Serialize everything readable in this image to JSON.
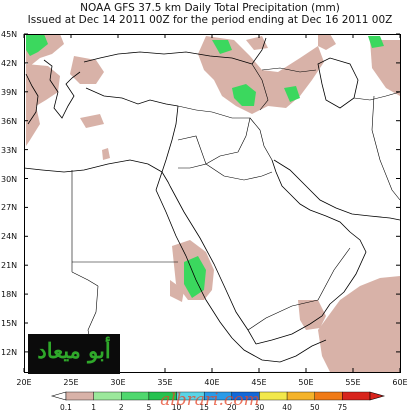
{
  "title_line1": "NOAA GFS 37.5 km Daily Total Precipitation (mm)",
  "title_line2": "Issued at Dec 14 2011 00Z for the period ending at Dec 16 2011 00Z",
  "lat_labels": [
    "45N",
    "42N",
    "39N",
    "36N",
    "33N",
    "30N",
    "27N",
    "24N",
    "21N",
    "18N",
    "15N",
    "12N"
  ],
  "lon_labels": [
    "20E",
    "25E",
    "30E",
    "35E",
    "40E",
    "45E",
    "50E",
    "55E",
    "60E"
  ],
  "colorbar": {
    "labels": [
      "0.1",
      "1",
      "2",
      "5",
      "10",
      "15",
      "20",
      "30",
      "40",
      "50",
      "75"
    ],
    "colors": [
      "#d8b2a8",
      "#9be89b",
      "#4fd86e",
      "#26c24f",
      "#5ad4e6",
      "#2a9be8",
      "#1468d8",
      "#f2e84a",
      "#f4b32a",
      "#f07a16",
      "#d8241c"
    ]
  },
  "logo_text": "أبو ميعاد",
  "watermark_text": "albrari.com",
  "colors": {
    "map_border": "#000000",
    "coastline": "#000000",
    "light_precip": "#d8b2a8",
    "green_precip": "#3bd85e"
  },
  "map_extent": {
    "lon": [
      20,
      60
    ],
    "lat": [
      10,
      45
    ]
  }
}
